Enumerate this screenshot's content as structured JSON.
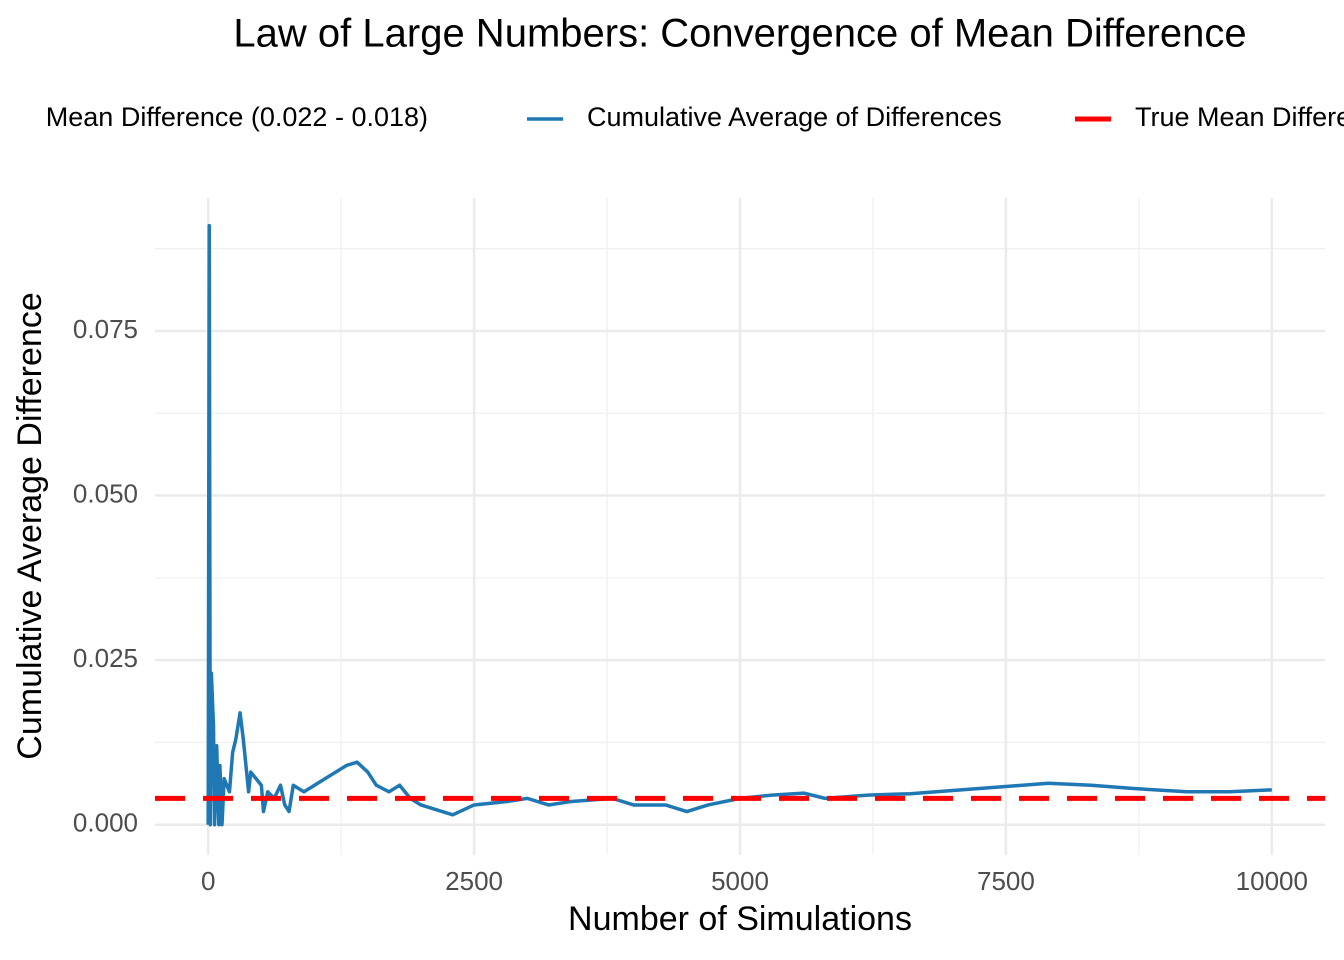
{
  "chart_data": {
    "type": "line",
    "title": "Law of Large Numbers: Convergence of Mean Difference",
    "xlabel": "Number of Simulations",
    "ylabel": "Cumulative Average Difference",
    "legend_title": "Mean Difference (0.022 - 0.018)",
    "legend": "top",
    "grid": true,
    "x": [
      0,
      10,
      20,
      30,
      50,
      60,
      80,
      100,
      110,
      130,
      150,
      200,
      230,
      260,
      300,
      330,
      380,
      400,
      450,
      500,
      520,
      560,
      620,
      680,
      720,
      760,
      800,
      900,
      1000,
      1100,
      1200,
      1300,
      1400,
      1500,
      1580,
      1700,
      1800,
      1900,
      2000,
      2200,
      2300,
      2500,
      2800,
      3000,
      3200,
      3400,
      3800,
      4000,
      4300,
      4500,
      4700,
      5000,
      5300,
      5600,
      5800,
      6200,
      6600,
      7000,
      7500,
      7900,
      8300,
      8700,
      9200,
      9600,
      10000
    ],
    "series": [
      {
        "name": "Cumulative Average of Differences",
        "color": "#1f78b4",
        "values": [
          0,
          0.091,
          0,
          0.023,
          0.015,
          0,
          0.012,
          0,
          0.009,
          0,
          0.007,
          0.005,
          0.011,
          0.013,
          0.017,
          0.013,
          0.005,
          0.008,
          0.007,
          0.006,
          0.002,
          0.005,
          0.004,
          0.006,
          0.003,
          0.002,
          0.006,
          0.005,
          0.006,
          0.007,
          0.008,
          0.009,
          0.0095,
          0.008,
          0.006,
          0.005,
          0.006,
          0.004,
          0.003,
          0.002,
          0.0015,
          0.003,
          0.0035,
          0.004,
          0.003,
          0.0035,
          0.004,
          0.003,
          0.003,
          0.002,
          0.003,
          0.004,
          0.0045,
          0.0048,
          0.004,
          0.0045,
          0.0047,
          0.0052,
          0.0058,
          0.0063,
          0.006,
          0.0055,
          0.005,
          0.005,
          0.0053
        ]
      },
      {
        "name": "True Mean Difference",
        "color": "#ff0000",
        "dashed": true,
        "hline": 0.004
      }
    ],
    "xlim": [
      -500,
      10500
    ],
    "ylim": [
      -0.0046,
      0.0952
    ],
    "xticks": [
      0,
      2500,
      5000,
      7500,
      10000
    ],
    "yticks": [
      {
        "value": 0,
        "label": "0.000"
      },
      {
        "value": 0.025,
        "label": "0.025"
      },
      {
        "value": 0.05,
        "label": "0.050"
      },
      {
        "value": 0.075,
        "label": "0.075"
      }
    ],
    "xminor": [
      1250,
      3750,
      6250,
      8750
    ],
    "yminor": [
      0.0125,
      0.0375,
      0.0625,
      0.0875
    ]
  }
}
